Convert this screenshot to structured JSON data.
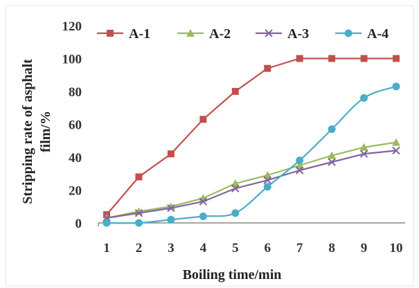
{
  "chart_data": {
    "type": "line",
    "title": "",
    "xlabel": "Boiling time/min",
    "ylabel_lines": [
      "Stripping rate of asphalt",
      "film/%"
    ],
    "x": [
      1,
      2,
      3,
      4,
      5,
      6,
      7,
      8,
      9,
      10
    ],
    "xlim": [
      1,
      10
    ],
    "ylim": [
      0,
      120
    ],
    "yticks": [
      0,
      20,
      40,
      60,
      80,
      100,
      120
    ],
    "grid": false,
    "legend": "top",
    "series": [
      {
        "name": "A-1",
        "color": "#c0504d",
        "marker": "square",
        "values": [
          5,
          28,
          42,
          63,
          80,
          94,
          100,
          100,
          100,
          100
        ]
      },
      {
        "name": "A-2",
        "color": "#9bbb59",
        "marker": "triangle",
        "values": [
          3,
          7,
          10,
          15,
          24,
          29,
          35,
          41,
          46,
          49
        ]
      },
      {
        "name": "A-3",
        "color": "#8064a2",
        "marker": "x",
        "values": [
          3,
          6,
          9,
          13,
          21,
          26,
          32,
          37,
          42,
          44
        ]
      },
      {
        "name": "A-4",
        "color": "#4bacc6",
        "marker": "circle",
        "values": [
          0,
          0,
          2,
          4,
          6,
          22,
          38,
          57,
          76,
          83
        ]
      }
    ]
  }
}
